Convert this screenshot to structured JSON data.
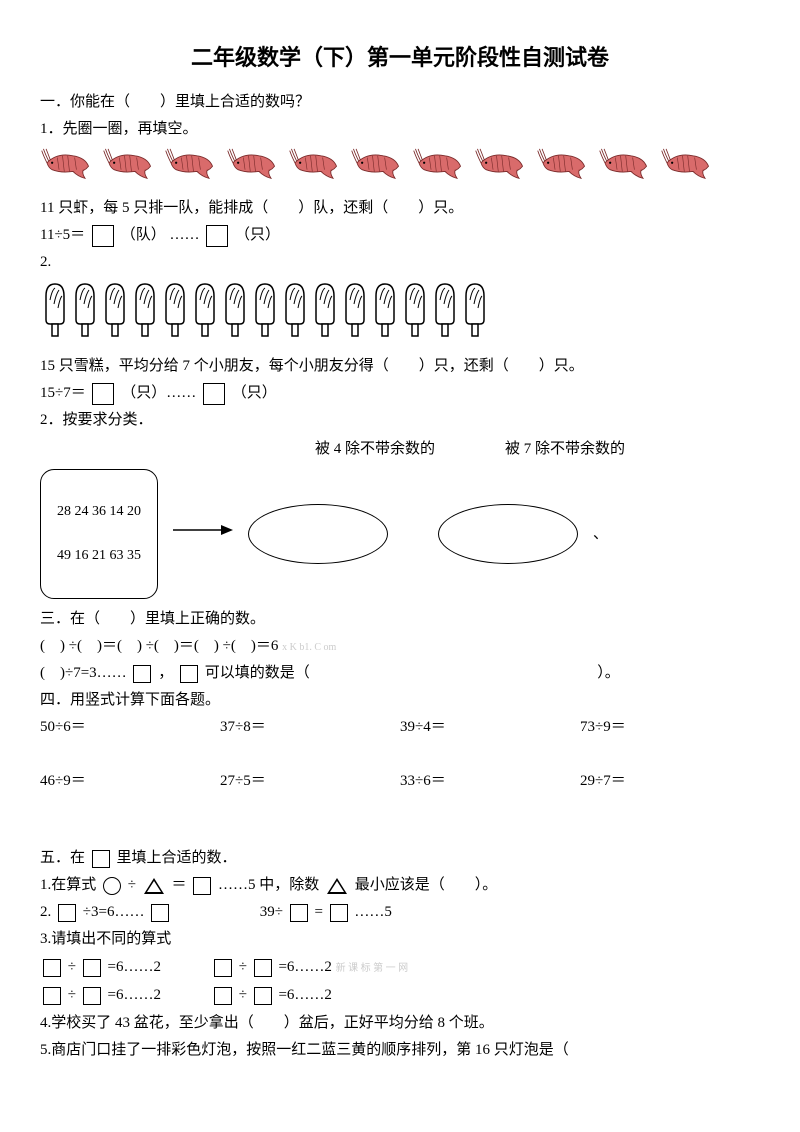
{
  "title": "二年级数学（下）第一单元阶段性自测试卷",
  "sec1": {
    "heading": "一．你能在（　　）里填上合适的数吗？",
    "q1_label": "1．先圈一圈，再填空。",
    "shrimp_count": 11,
    "shrimp_text": "11 只虾，每 5 只排一队，能排成（　　）队，还剩（　　）只。",
    "shrimp_eq_a": "11÷5＝",
    "shrimp_eq_b": "（队）  ……",
    "shrimp_eq_c": "（只）",
    "q2_label": "2.",
    "popsicle_count": 15,
    "popsicle_text": "15 只雪糕，平均分给 7 个小朋友，每个小朋友分得（　　）只，还剩（　　）只。",
    "popsicle_eq_a": "15÷7＝",
    "popsicle_eq_b": "（只）……",
    "popsicle_eq_c": "（只）"
  },
  "sec2": {
    "heading": "2．按要求分类．",
    "col1": "被 4 除不带余数的",
    "col2": "被 7 除不带余数的",
    "numbers_l1": "28 24 36 14 20",
    "numbers_l2": "49 16 21 63 35"
  },
  "sec3": {
    "heading": "三．在（　　）里填上正确的数。",
    "line1": "(　) ÷(　)＝(　) ÷(　)＝(　) ÷(　)＝6",
    "watermark1": "x K b1. C om",
    "line2_a": "(　)÷7=3……",
    "line2_b": "，",
    "line2_c": "可以填的数是（",
    "line2_d": "）。"
  },
  "sec4": {
    "heading": "四．用竖式计算下面各题。",
    "row1": [
      "50÷6＝",
      "37÷8＝",
      "39÷4＝",
      "73÷9＝"
    ],
    "row2": [
      "46÷9＝",
      "27÷5＝",
      "33÷6＝",
      "29÷7＝"
    ]
  },
  "sec5": {
    "heading_a": "五．在",
    "heading_b": "里填上合适的数．",
    "q1_a": "1.在算式",
    "q1_b": "÷",
    "q1_c": "＝",
    "q1_d": "……5 中，除数",
    "q1_e": "最小应该是（　　）。",
    "q2_a": "2.",
    "q2_b": "÷3=6……",
    "q2_c": "39÷",
    "q2_d": "=",
    "q2_e": "……5",
    "q3_label": "3.请填出不同的算式",
    "q3_pattern_a": "÷",
    "q3_pattern_b": "=6……2",
    "watermark2": "新 课 标 第 一 网",
    "q4": "4.学校买了 43 盆花，至少拿出（　　）盆后，正好平均分给 8 个班。",
    "q5": "5.商店门口挂了一排彩色灯泡，按照一红二蓝三黄的顺序排列，第 16 只灯泡是（"
  }
}
